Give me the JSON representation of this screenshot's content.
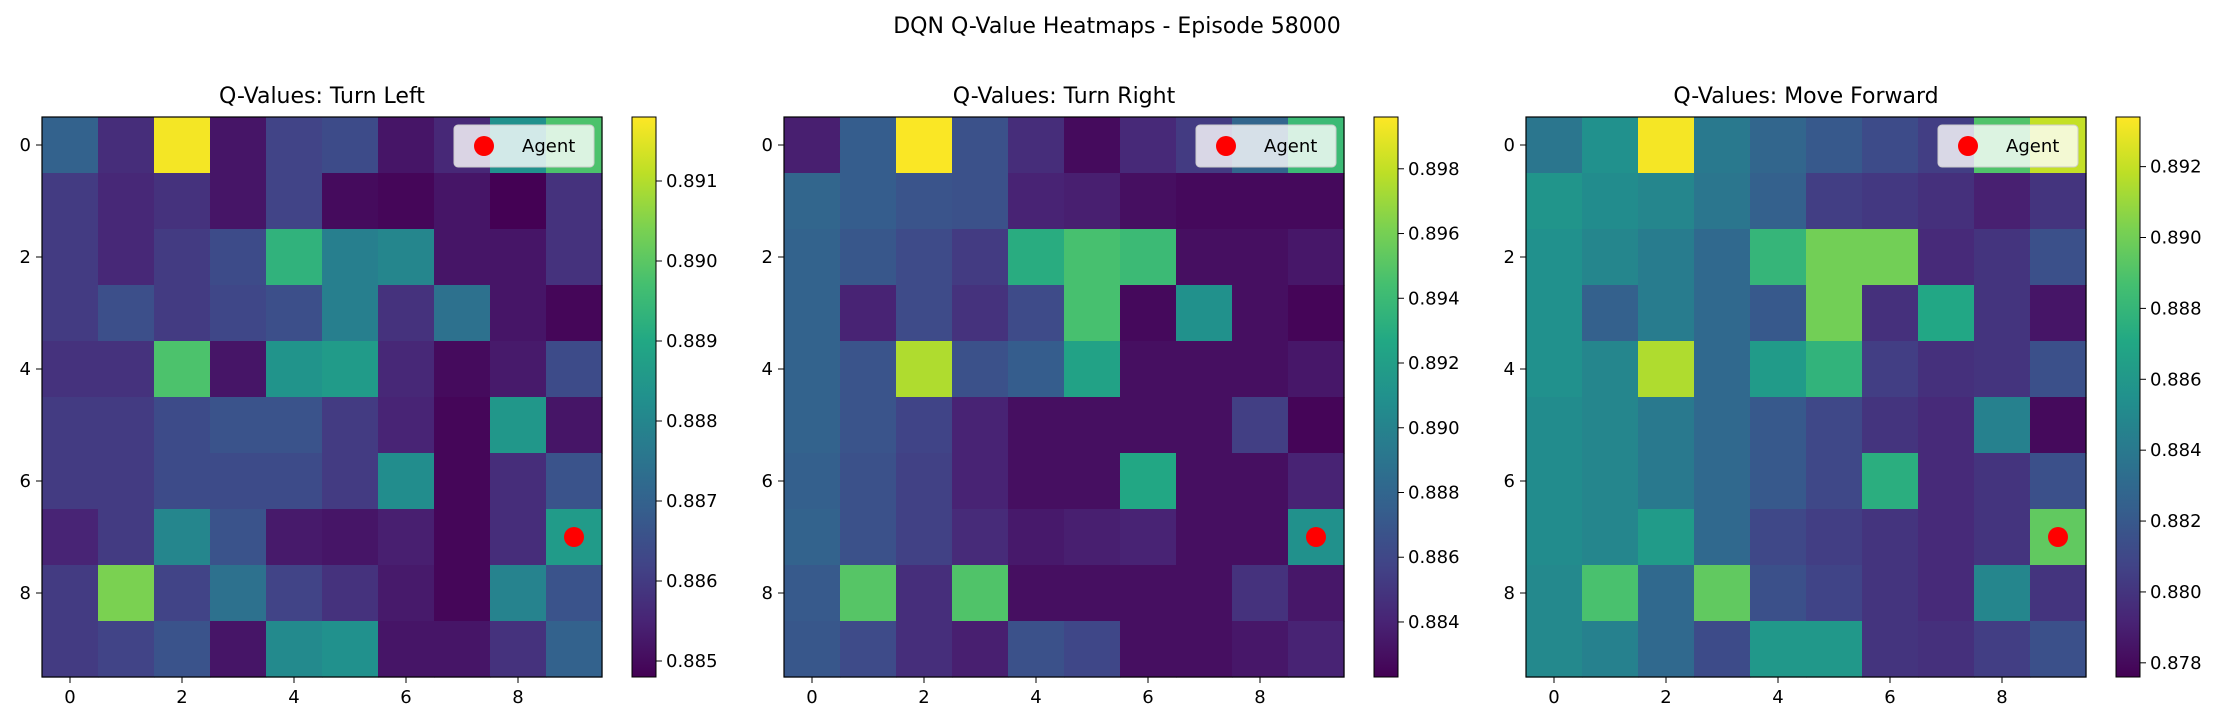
{
  "figure": {
    "title": "DQN Q-Value Heatmaps - Episode 58000"
  },
  "legend": {
    "label": "Agent",
    "marker_color": "#ff0000"
  },
  "colormap": "viridis",
  "chart_data": [
    {
      "type": "heatmap",
      "title": "Q-Values: Turn Left",
      "xticks": [
        0,
        2,
        4,
        6,
        8
      ],
      "yticks": [
        0,
        2,
        4,
        6,
        8
      ],
      "clim": [
        0.8848,
        0.8918
      ],
      "cbar_ticks": [
        "0.885",
        "0.886",
        "0.887",
        "0.888",
        "0.889",
        "0.890",
        "0.891"
      ],
      "cbar_tick_values": [
        0.885,
        0.886,
        0.887,
        0.888,
        0.889,
        0.89,
        0.891
      ],
      "agent": {
        "x": 9,
        "y": 7
      },
      "legend_position": "upper right",
      "z": [
        [
          0.887,
          0.8857,
          0.8917,
          0.8852,
          0.8862,
          0.8864,
          0.8852,
          0.8856,
          0.8883,
          0.8898
        ],
        [
          0.886,
          0.8856,
          0.8858,
          0.8852,
          0.8862,
          0.885,
          0.8849,
          0.8852,
          0.8848,
          0.8858
        ],
        [
          0.886,
          0.8856,
          0.886,
          0.8864,
          0.8893,
          0.8878,
          0.888,
          0.8852,
          0.8852,
          0.8858
        ],
        [
          0.886,
          0.8865,
          0.886,
          0.8863,
          0.8865,
          0.8878,
          0.8858,
          0.8874,
          0.8852,
          0.8849
        ],
        [
          0.8858,
          0.8858,
          0.8898,
          0.8852,
          0.8884,
          0.8886,
          0.8856,
          0.885,
          0.8853,
          0.8864
        ],
        [
          0.886,
          0.886,
          0.8864,
          0.8866,
          0.8866,
          0.886,
          0.8855,
          0.8849,
          0.8885,
          0.8852
        ],
        [
          0.886,
          0.886,
          0.8864,
          0.8864,
          0.8864,
          0.886,
          0.8882,
          0.8849,
          0.8857,
          0.8866
        ],
        [
          0.8855,
          0.886,
          0.888,
          0.8866,
          0.8853,
          0.8852,
          0.8854,
          0.8849,
          0.8857,
          0.8886
        ],
        [
          0.886,
          0.8904,
          0.8862,
          0.8874,
          0.8862,
          0.8858,
          0.8853,
          0.8849,
          0.8879,
          0.8866
        ],
        [
          0.886,
          0.8862,
          0.8866,
          0.8852,
          0.8881,
          0.8883,
          0.8852,
          0.8852,
          0.8858,
          0.887
        ]
      ]
    },
    {
      "type": "heatmap",
      "title": "Q-Values: Turn Right",
      "xticks": [
        0,
        2,
        4,
        6,
        8
      ],
      "yticks": [
        0,
        2,
        4,
        6,
        8
      ],
      "clim": [
        0.8823,
        0.8996
      ],
      "cbar_ticks": [
        "0.884",
        "0.886",
        "0.888",
        "0.890",
        "0.892",
        "0.894",
        "0.896",
        "0.898"
      ],
      "cbar_tick_values": [
        0.884,
        0.886,
        0.888,
        0.89,
        0.892,
        0.894,
        0.896,
        0.898
      ],
      "agent": {
        "x": 9,
        "y": 7
      },
      "legend_position": "upper right",
      "z": [
        [
          0.8838,
          0.8874,
          0.8995,
          0.8866,
          0.8845,
          0.8828,
          0.8843,
          0.8853,
          0.888,
          0.894
        ],
        [
          0.888,
          0.8874,
          0.8868,
          0.8866,
          0.884,
          0.8838,
          0.883,
          0.8827,
          0.8827,
          0.8827
        ],
        [
          0.8878,
          0.887,
          0.8862,
          0.8853,
          0.893,
          0.8945,
          0.894,
          0.883,
          0.883,
          0.8834
        ],
        [
          0.8878,
          0.884,
          0.8862,
          0.8848,
          0.8862,
          0.8945,
          0.8827,
          0.891,
          0.883,
          0.8825
        ],
        [
          0.8878,
          0.8868,
          0.8975,
          0.8866,
          0.8874,
          0.8922,
          0.883,
          0.883,
          0.883,
          0.8834
        ],
        [
          0.8878,
          0.8868,
          0.8858,
          0.884,
          0.883,
          0.883,
          0.883,
          0.883,
          0.8855,
          0.8825
        ],
        [
          0.8876,
          0.8866,
          0.8856,
          0.884,
          0.883,
          0.883,
          0.8926,
          0.883,
          0.883,
          0.884
        ],
        [
          0.8878,
          0.8866,
          0.8856,
          0.8844,
          0.8835,
          0.8838,
          0.884,
          0.883,
          0.883,
          0.891
        ],
        [
          0.8872,
          0.895,
          0.8846,
          0.8948,
          0.883,
          0.883,
          0.883,
          0.883,
          0.8848,
          0.8834
        ],
        [
          0.887,
          0.8862,
          0.8846,
          0.8838,
          0.8866,
          0.886,
          0.883,
          0.883,
          0.8834,
          0.884
        ]
      ]
    },
    {
      "type": "heatmap",
      "title": "Q-Values: Move Forward",
      "xticks": [
        0,
        2,
        4,
        6,
        8
      ],
      "yticks": [
        0,
        2,
        4,
        6,
        8
      ],
      "clim": [
        0.8776,
        0.8934
      ],
      "cbar_ticks": [
        "0.878",
        "0.880",
        "0.882",
        "0.884",
        "0.886",
        "0.888",
        "0.890",
        "0.892"
      ],
      "cbar_tick_values": [
        0.878,
        0.88,
        0.882,
        0.884,
        0.886,
        0.888,
        0.89,
        0.892
      ],
      "agent": {
        "x": 9,
        "y": 7
      },
      "legend_position": "upper right",
      "z": [
        [
          0.8838,
          0.8855,
          0.8932,
          0.884,
          0.8828,
          0.882,
          0.8812,
          0.8805,
          0.889,
          0.892
        ],
        [
          0.8858,
          0.8852,
          0.8848,
          0.8838,
          0.8825,
          0.8805,
          0.8802,
          0.8798,
          0.879,
          0.88
        ],
        [
          0.8855,
          0.8848,
          0.8842,
          0.883,
          0.888,
          0.89,
          0.89,
          0.8795,
          0.88,
          0.8815
        ],
        [
          0.8855,
          0.8825,
          0.8842,
          0.883,
          0.882,
          0.89,
          0.8798,
          0.887,
          0.88,
          0.8785
        ],
        [
          0.8855,
          0.8848,
          0.8915,
          0.883,
          0.8862,
          0.8878,
          0.8805,
          0.8798,
          0.88,
          0.8815
        ],
        [
          0.8852,
          0.8848,
          0.884,
          0.883,
          0.882,
          0.881,
          0.88,
          0.8795,
          0.8845,
          0.878
        ],
        [
          0.8852,
          0.8848,
          0.884,
          0.883,
          0.882,
          0.881,
          0.8875,
          0.8795,
          0.88,
          0.8815
        ],
        [
          0.8852,
          0.8848,
          0.8862,
          0.883,
          0.881,
          0.8805,
          0.88,
          0.8795,
          0.88,
          0.8895
        ],
        [
          0.885,
          0.8888,
          0.883,
          0.8895,
          0.8815,
          0.8808,
          0.88,
          0.8795,
          0.8848,
          0.88
        ],
        [
          0.885,
          0.8845,
          0.883,
          0.8812,
          0.886,
          0.886,
          0.88,
          0.8798,
          0.8805,
          0.8815
        ]
      ]
    }
  ]
}
